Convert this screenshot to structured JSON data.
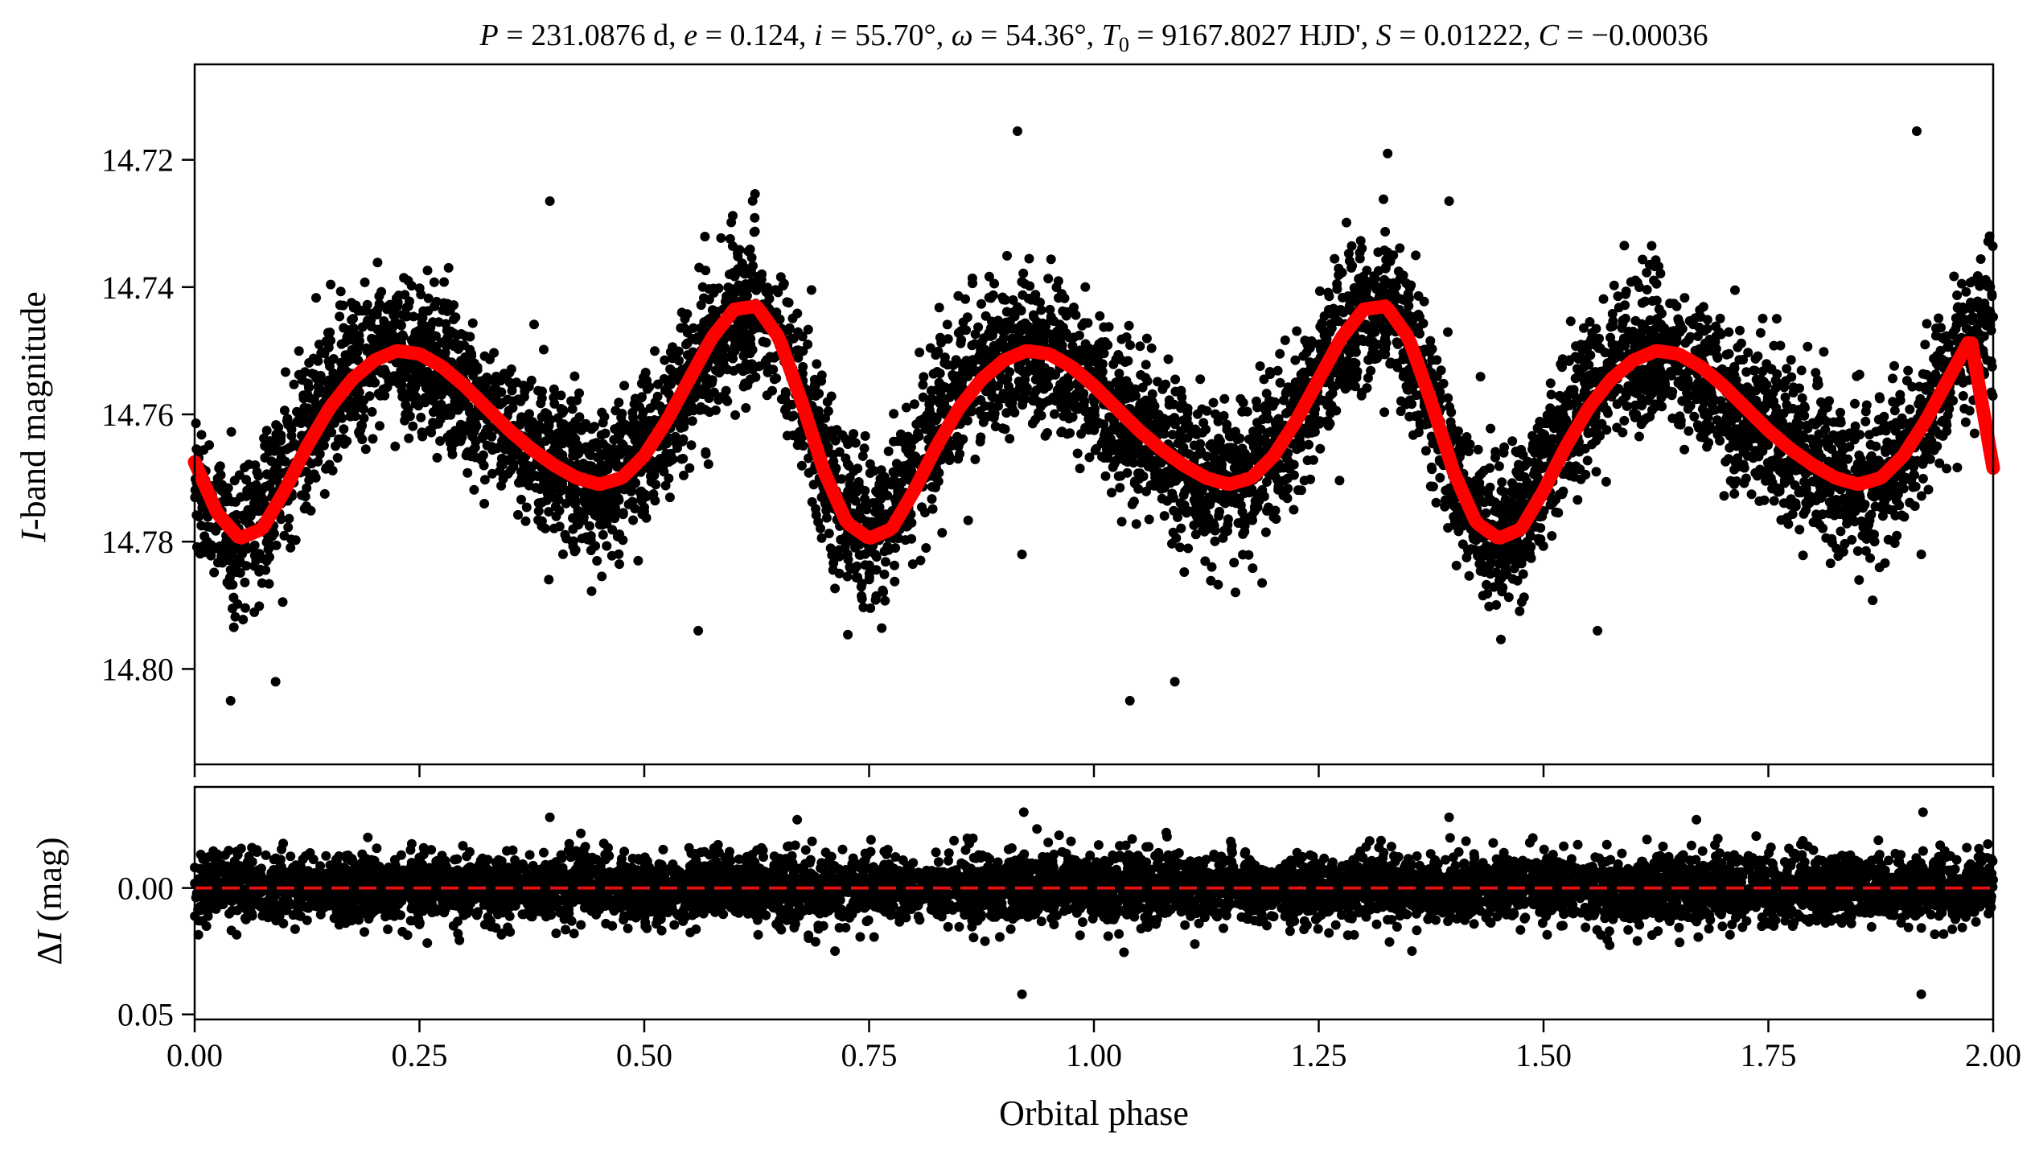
{
  "chart_data": [
    {
      "type": "scatter",
      "panel": "top",
      "title": "P = 231.0876 d, e = 0.124, i = 55.70°, ω = 54.36°, T0 = 9167.8027 HJD', S = 0.01222, C = −0.00036",
      "title_parts": {
        "p_sym": "P",
        "p_val": " = 231.0876 d, ",
        "e_sym": "e",
        "e_val": " = 0.124, ",
        "i_sym": "i",
        "i_val": " = 55.70°, ",
        "w_sym": "ω",
        "w_val": " = 54.36°, ",
        "t_sym": "T",
        "t_sub": "0",
        "t_val": " = 9167.8027 HJD', ",
        "s_sym": "S",
        "s_val": " = 0.01222, ",
        "c_sym": "C",
        "c_val": " = −0.00036"
      },
      "ylabel_sym": "I",
      "ylabel_rest": "-band magnitude",
      "y_inverted": true,
      "ylim": [
        14.815,
        14.705
      ],
      "yticks": [
        14.72,
        14.74,
        14.76,
        14.78,
        14.8
      ],
      "ytick_labels": [
        "14.72",
        "14.74",
        "14.76",
        "14.78",
        "14.80"
      ],
      "xlim": [
        0.0,
        2.0
      ],
      "xticks": [
        0.0,
        0.25,
        0.5,
        0.75,
        1.0,
        1.25,
        1.5,
        1.75,
        2.0
      ],
      "series": [
        {
          "kind": "observations",
          "color": "#000000",
          "x_step": 0.025,
          "y_mean": [
            14.77,
            14.7775,
            14.7795,
            14.776,
            14.769,
            14.762,
            14.7565,
            14.7525,
            14.7505,
            14.75,
            14.751,
            14.7535,
            14.7565,
            14.7595,
            14.7625,
            14.7655,
            14.768,
            14.77,
            14.771,
            14.77,
            14.766,
            14.7605,
            14.7545,
            14.749,
            14.7445,
            14.743,
            14.748,
            14.758,
            14.769,
            14.777,
            14.7795,
            14.776,
            14.769,
            14.762,
            14.7565,
            14.7525,
            14.7505,
            14.75,
            14.751,
            14.7535,
            14.7565,
            14.7595,
            14.7625,
            14.7655,
            14.768,
            14.77,
            14.771,
            14.77,
            14.766,
            14.7605,
            14.7545,
            14.749,
            14.7445,
            14.743,
            14.748,
            14.758,
            14.769,
            14.777,
            14.7795,
            14.776,
            14.769,
            14.762,
            14.7565,
            14.7525,
            14.7505,
            14.75,
            14.751,
            14.7535,
            14.7565,
            14.7595,
            14.7625,
            14.7655,
            14.768,
            14.77,
            14.771,
            14.77,
            14.766,
            14.7605,
            14.7545,
            14.749,
            14.744
          ]
        },
        {
          "kind": "model",
          "color": "#ff0000",
          "x_step": 0.025,
          "y": [
            14.7675,
            14.7755,
            14.7795,
            14.778,
            14.772,
            14.765,
            14.759,
            14.7545,
            14.7515,
            14.75,
            14.7505,
            14.7525,
            14.7555,
            14.759,
            14.7625,
            14.7655,
            14.768,
            14.77,
            14.771,
            14.77,
            14.7665,
            14.761,
            14.7545,
            14.748,
            14.7435,
            14.743,
            14.748,
            14.758,
            14.769,
            14.777,
            14.7795,
            14.778,
            14.772,
            14.765,
            14.759,
            14.7545,
            14.7515,
            14.75,
            14.7505,
            14.7525,
            14.7555,
            14.759,
            14.7625,
            14.7655,
            14.768,
            14.77,
            14.771,
            14.77,
            14.7665,
            14.761,
            14.7545,
            14.748,
            14.7435,
            14.743,
            14.748,
            14.758,
            14.769,
            14.777,
            14.7795,
            14.778,
            14.772,
            14.765,
            14.759,
            14.7545,
            14.7515,
            14.75,
            14.7505,
            14.7525,
            14.7555,
            14.759,
            14.7625,
            14.7655,
            14.768,
            14.77,
            14.771,
            14.77,
            14.7665,
            14.761,
            14.7545,
            14.748,
            14.7685
          ]
        }
      ],
      "outliers": [
        {
          "x": 0.04,
          "y": 14.805
        },
        {
          "x": 0.09,
          "y": 14.802
        },
        {
          "x": 0.395,
          "y": 14.7265
        },
        {
          "x": 0.56,
          "y": 14.794
        },
        {
          "x": 0.565,
          "y": 14.74
        },
        {
          "x": 0.915,
          "y": 14.7155
        },
        {
          "x": 0.92,
          "y": 14.782
        },
        {
          "x": 1.04,
          "y": 14.805
        },
        {
          "x": 1.09,
          "y": 14.802
        },
        {
          "x": 1.395,
          "y": 14.7265
        },
        {
          "x": 1.56,
          "y": 14.794
        },
        {
          "x": 1.915,
          "y": 14.7155
        },
        {
          "x": 1.92,
          "y": 14.782
        }
      ]
    },
    {
      "type": "scatter",
      "panel": "bottom",
      "ylabel_delta": "Δ",
      "ylabel_sym": "I",
      "ylabel_rest": " (mag)",
      "y_inverted": true,
      "ylim": [
        0.052,
        -0.04
      ],
      "yticks": [
        0.0,
        0.05
      ],
      "ytick_labels": [
        "0.00",
        "0.05"
      ],
      "xlim": [
        0.0,
        2.0
      ],
      "xticks": [
        0.0,
        0.25,
        0.5,
        0.75,
        1.0,
        1.25,
        1.5,
        1.75,
        2.0
      ],
      "xtick_labels": [
        "0.00",
        "0.25",
        "0.50",
        "0.75",
        "1.00",
        "1.25",
        "1.50",
        "1.75",
        "2.00"
      ],
      "xlabel": "Orbital phase",
      "residual_scatter_typical": 0.012,
      "reference_line": {
        "y": 0.0,
        "style": "dashed",
        "color": "#ff0000"
      },
      "outliers": [
        {
          "x": 0.395,
          "y": -0.028
        },
        {
          "x": 0.67,
          "y": -0.027
        },
        {
          "x": 0.92,
          "y": 0.042
        },
        {
          "x": 0.922,
          "y": -0.03
        },
        {
          "x": 1.395,
          "y": -0.028
        },
        {
          "x": 1.67,
          "y": -0.027
        },
        {
          "x": 1.92,
          "y": 0.042
        },
        {
          "x": 1.922,
          "y": -0.03
        }
      ]
    }
  ]
}
